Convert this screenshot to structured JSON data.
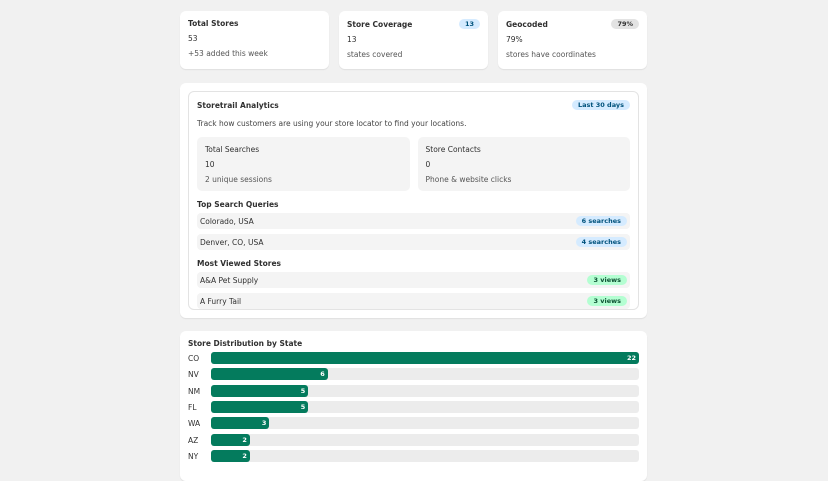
{
  "stats": [
    {
      "title": "Total Stores",
      "value": "53",
      "note": "+53 added this week"
    },
    {
      "title": "Store Coverage",
      "badge": "13",
      "value": "13",
      "note": "states covered"
    },
    {
      "title": "Geocoded",
      "badge": "79%",
      "value": "79%",
      "note": "stores have coordinates"
    }
  ],
  "analytics": {
    "title": "Storetrail Analytics",
    "badge": "Last 30 days",
    "description": "Track how customers are using your store locator to find your locations.",
    "metrics": [
      {
        "title": "Total Searches",
        "value": "10",
        "note": "2 unique sessions"
      },
      {
        "title": "Store Contacts",
        "value": "0",
        "note": "Phone & website clicks"
      }
    ],
    "queries_title": "Top Search Queries",
    "queries": [
      {
        "label": "Colorado, USA",
        "count": "6 searches"
      },
      {
        "label": "Denver, CO, USA",
        "count": "4 searches"
      }
    ],
    "stores_title": "Most Viewed Stores",
    "stores": [
      {
        "label": "A&A Pet Supply",
        "count": "3 views"
      },
      {
        "label": "A Furry Tail",
        "count": "3 views"
      }
    ]
  },
  "distribution": {
    "title": "Store Distribution by State",
    "categories": [
      "CO",
      "NV",
      "NM",
      "FL",
      "WA",
      "AZ",
      "NY"
    ],
    "values": [
      22,
      6,
      5,
      5,
      3,
      2,
      2
    ],
    "color": "#047b5d"
  }
}
